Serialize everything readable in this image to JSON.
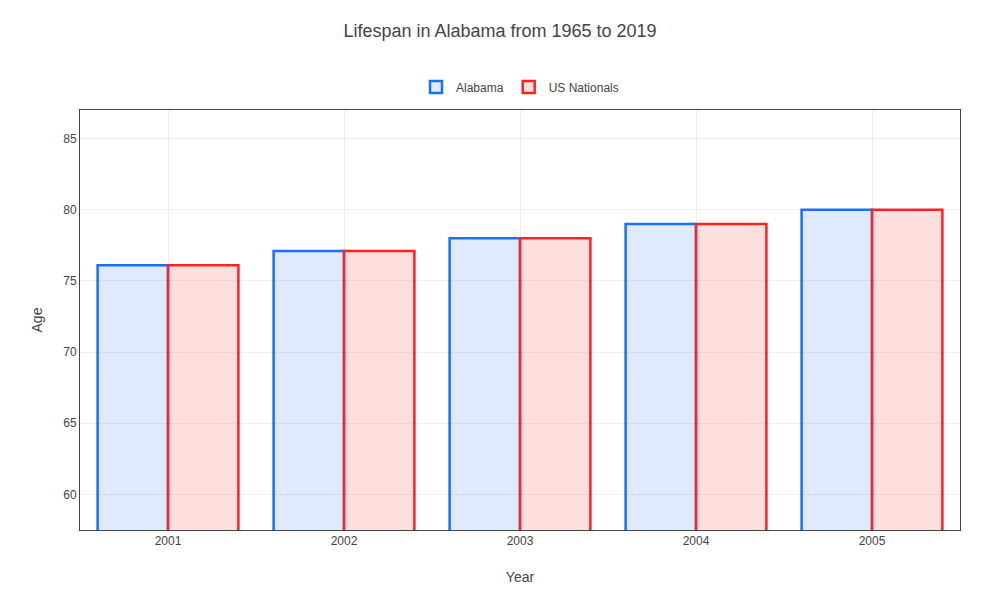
{
  "chart_data": {
    "type": "bar",
    "title": "Lifespan in Alabama from 1965 to 2019",
    "xlabel": "Year",
    "ylabel": "Age",
    "categories": [
      "2001",
      "2002",
      "2003",
      "2004",
      "2005"
    ],
    "series": [
      {
        "name": "Alabama",
        "color": "#1a6fff",
        "values": [
          76.1,
          77.1,
          78.0,
          79.0,
          80.0
        ]
      },
      {
        "name": "US Nationals",
        "color": "#ff2222",
        "values": [
          76.1,
          77.1,
          78.0,
          79.0,
          80.0
        ]
      }
    ],
    "ylim": [
      57.5,
      87
    ],
    "yticks": [
      60,
      65,
      70,
      75,
      80,
      85
    ],
    "grid": true,
    "legend": "top"
  }
}
